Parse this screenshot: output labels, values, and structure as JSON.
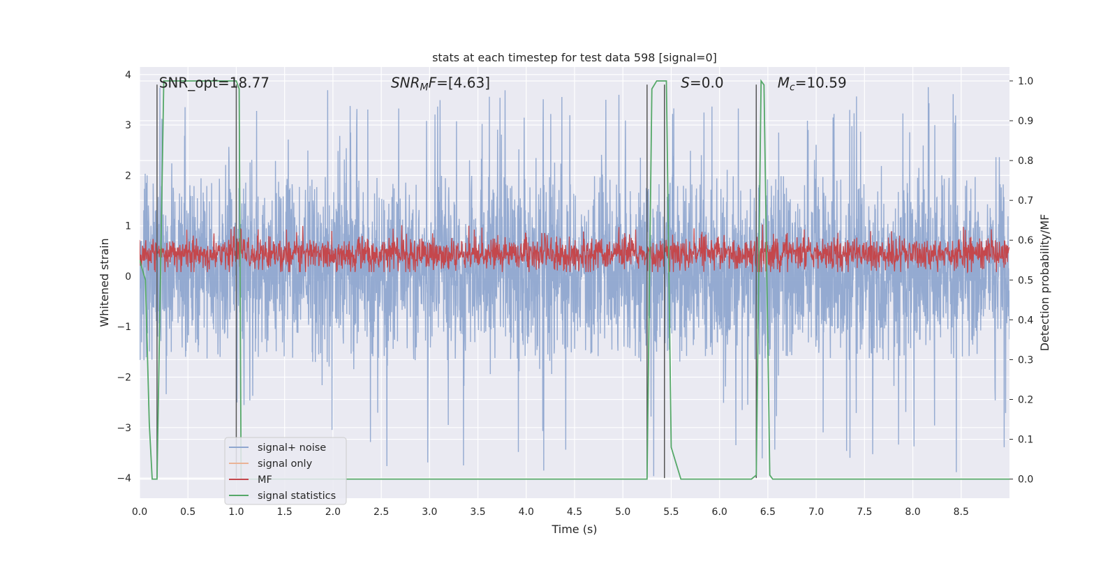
{
  "chart_data": {
    "type": "line",
    "title": "stats at each timestep for test data 598 [signal=0]",
    "xlabel": "Time (s)",
    "ylabel": "Whitened strain",
    "y2label": "Detection probability/MF",
    "xlim": [
      0.0,
      9.0
    ],
    "ylim": [
      -4.4,
      4.15
    ],
    "y2lim": [
      -0.048,
      1.035
    ],
    "x_ticks": [
      0.0,
      0.5,
      1.0,
      1.5,
      2.0,
      2.5,
      3.0,
      3.5,
      4.0,
      4.5,
      5.0,
      5.5,
      6.0,
      6.5,
      7.0,
      7.5,
      8.0,
      8.5
    ],
    "x_tick_labels": [
      "0.0",
      "0.5",
      "1.0",
      "1.5",
      "2.0",
      "2.5",
      "3.0",
      "3.5",
      "4.0",
      "4.5",
      "5.0",
      "5.5",
      "6.0",
      "6.5",
      "7.0",
      "7.5",
      "8.0",
      "8.5"
    ],
    "y_ticks": [
      4,
      3,
      2,
      1,
      0,
      -1,
      -2,
      -3,
      -4
    ],
    "y_tick_labels": [
      "4",
      "3",
      "2",
      "1",
      "0",
      "−1",
      "−2",
      "−3",
      "−4"
    ],
    "y2_ticks": [
      1.0,
      0.9,
      0.8,
      0.7,
      0.6,
      0.5,
      0.4,
      0.3,
      0.2,
      0.1,
      0.0
    ],
    "y2_tick_labels": [
      "1.0",
      "0.9",
      "0.8",
      "0.7",
      "0.6",
      "0.5",
      "0.4",
      "0.3",
      "0.2",
      "0.1",
      "0.0"
    ],
    "legend": {
      "position": "lower-left",
      "entries": [
        {
          "label": "signal+ noise",
          "color": "#8fa6cf"
        },
        {
          "label": "signal only",
          "color": "#eab396"
        },
        {
          "label": "MF",
          "color": "#c4474c"
        },
        {
          "label": "signal statistics",
          "color": "#55a868"
        }
      ]
    },
    "annotations": [
      {
        "text": "SNR_opt=18.77",
        "x": 0.2,
        "y": 3.85
      },
      {
        "text": "SNRMF=[4.63]",
        "x": 2.6,
        "y": 3.85
      },
      {
        "text": "S=0.0",
        "x": 5.6,
        "y": 3.85
      },
      {
        "text": "Mc=10.59",
        "x": 6.6,
        "y": 3.85
      }
    ],
    "vlines": {
      "color": "#555555",
      "x": [
        0.18,
        1.0,
        5.25,
        5.43,
        6.38
      ],
      "y_range": [
        -4.0,
        3.8
      ]
    },
    "series": [
      {
        "name": "signal+ noise",
        "color": "#8fa6cf",
        "kind": "noise",
        "typical_range": [
          -1.7,
          2.0
        ],
        "extremes": [
          -4.0,
          3.8
        ]
      },
      {
        "name": "MF",
        "color": "#c4474c",
        "kind": "noise",
        "axis": "right",
        "typical_range": [
          0.53,
          0.6
        ],
        "extremes": [
          0.52,
          0.64
        ]
      },
      {
        "name": "signal statistics",
        "color": "#55a868",
        "axis": "right",
        "x": [
          0.0,
          0.06,
          0.1,
          0.13,
          0.18,
          0.25,
          1.0,
          1.03,
          1.05,
          5.25,
          5.3,
          5.35,
          5.45,
          5.5,
          5.6,
          6.33,
          6.38,
          6.43,
          6.46,
          6.52,
          6.55,
          9.0
        ],
        "y": [
          0.55,
          0.5,
          0.14,
          0.0,
          0.0,
          1.0,
          1.0,
          0.98,
          0.0,
          0.0,
          0.98,
          1.0,
          1.0,
          0.08,
          0.0,
          0.0,
          0.01,
          1.0,
          0.99,
          0.01,
          0.0,
          0.0
        ]
      }
    ]
  }
}
